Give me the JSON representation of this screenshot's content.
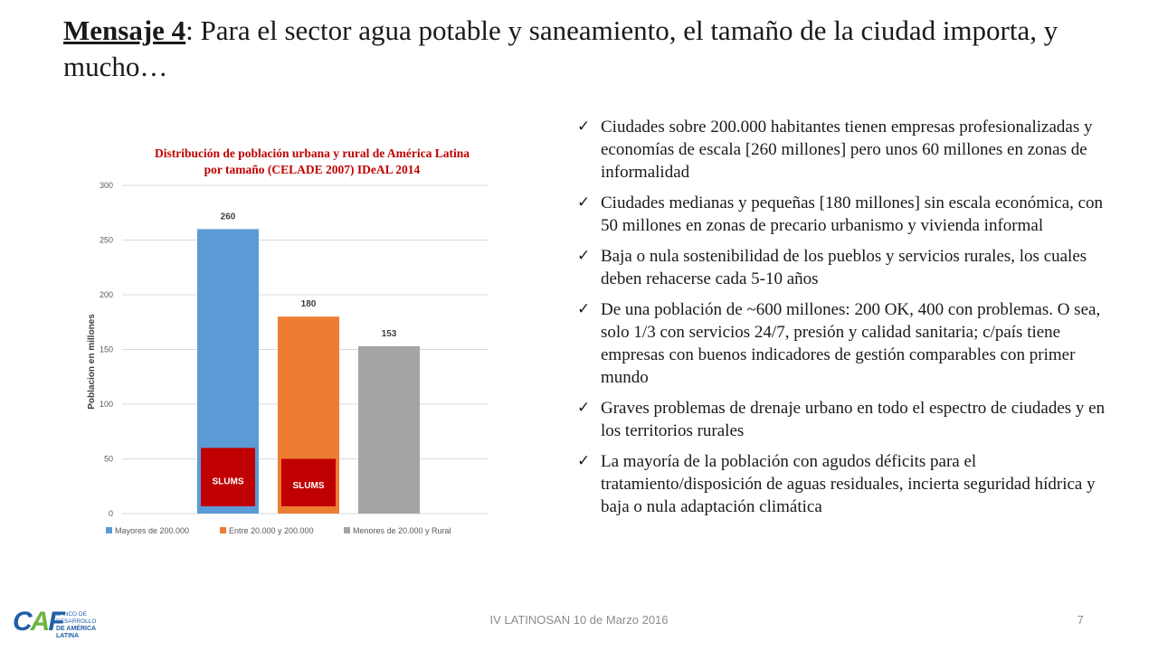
{
  "slide": {
    "title_lead": "Mensaje 4",
    "title_rest": ": Para el sector agua potable y saneamiento, el tamaño de la ciudad importa, y mucho…"
  },
  "bullets": [
    "Ciudades sobre 200.000 habitantes tienen empresas profesionalizadas y economías de escala [260 millones] pero unos 60 millones en zonas de informalidad",
    "Ciudades medianas y pequeñas [180 millones] sin escala económica, con 50 millones en zonas de precario urbanismo y vivienda informal",
    "Baja o nula sostenibilidad de los pueblos y servicios rurales, los cuales deben rehacerse cada 5-10 años",
    "De una población de ~600 millones: 200 OK, 400 con problemas. O sea, solo 1/3 con servicios 24/7, presión y calidad sanitaria; c/país tiene empresas con buenos indicadores de gestión comparables con primer mundo",
    "Graves problemas de drenaje urbano en todo el espectro de ciudades y en los territorios rurales",
    "La mayoría de la población con agudos déficits para el tratamiento/disposición de aguas residuales, incierta seguridad hídrica y baja o nula adaptación climática"
  ],
  "chart_data": {
    "type": "bar",
    "title_line1": "Distribución de población urbana y rural de América Latina",
    "title_line2": "por tamaño (CELADE 2007) IDeAL 2014",
    "ylabel": "Poblacion en millones",
    "ylim": [
      0,
      300
    ],
    "yticks": [
      "0",
      "50",
      "100",
      "150",
      "200",
      "250",
      "300"
    ],
    "grid": true,
    "legend_position": "bottom",
    "series": [
      {
        "name": "Mayores de 200.000",
        "value": 260,
        "label": "260",
        "color": "#5b9bd5"
      },
      {
        "name": "Entre 20.000 y 200.000",
        "value": 180,
        "label": "180",
        "color": "#ed7d31"
      },
      {
        "name": "Menores de 20.000 y Rural",
        "value": 153,
        "label": "153",
        "color": "#a5a5a5"
      }
    ],
    "annotations": [
      {
        "text": "SLUMS",
        "series_index": 0,
        "value": 60,
        "color": "#c00000"
      },
      {
        "text": "SLUMS",
        "series_index": 1,
        "value": 50,
        "color": "#c00000"
      }
    ]
  },
  "logo": {
    "mark_main": "C",
    "mark_accent": "A",
    "mark_end": "F",
    "bank_line1": "BANCO DE DESARROLLO",
    "bank_line2": "DE AMÉRICA LATINA"
  },
  "footer": {
    "text": "IV LATINOSAN 10 de Marzo 2016",
    "page_number": "7"
  }
}
